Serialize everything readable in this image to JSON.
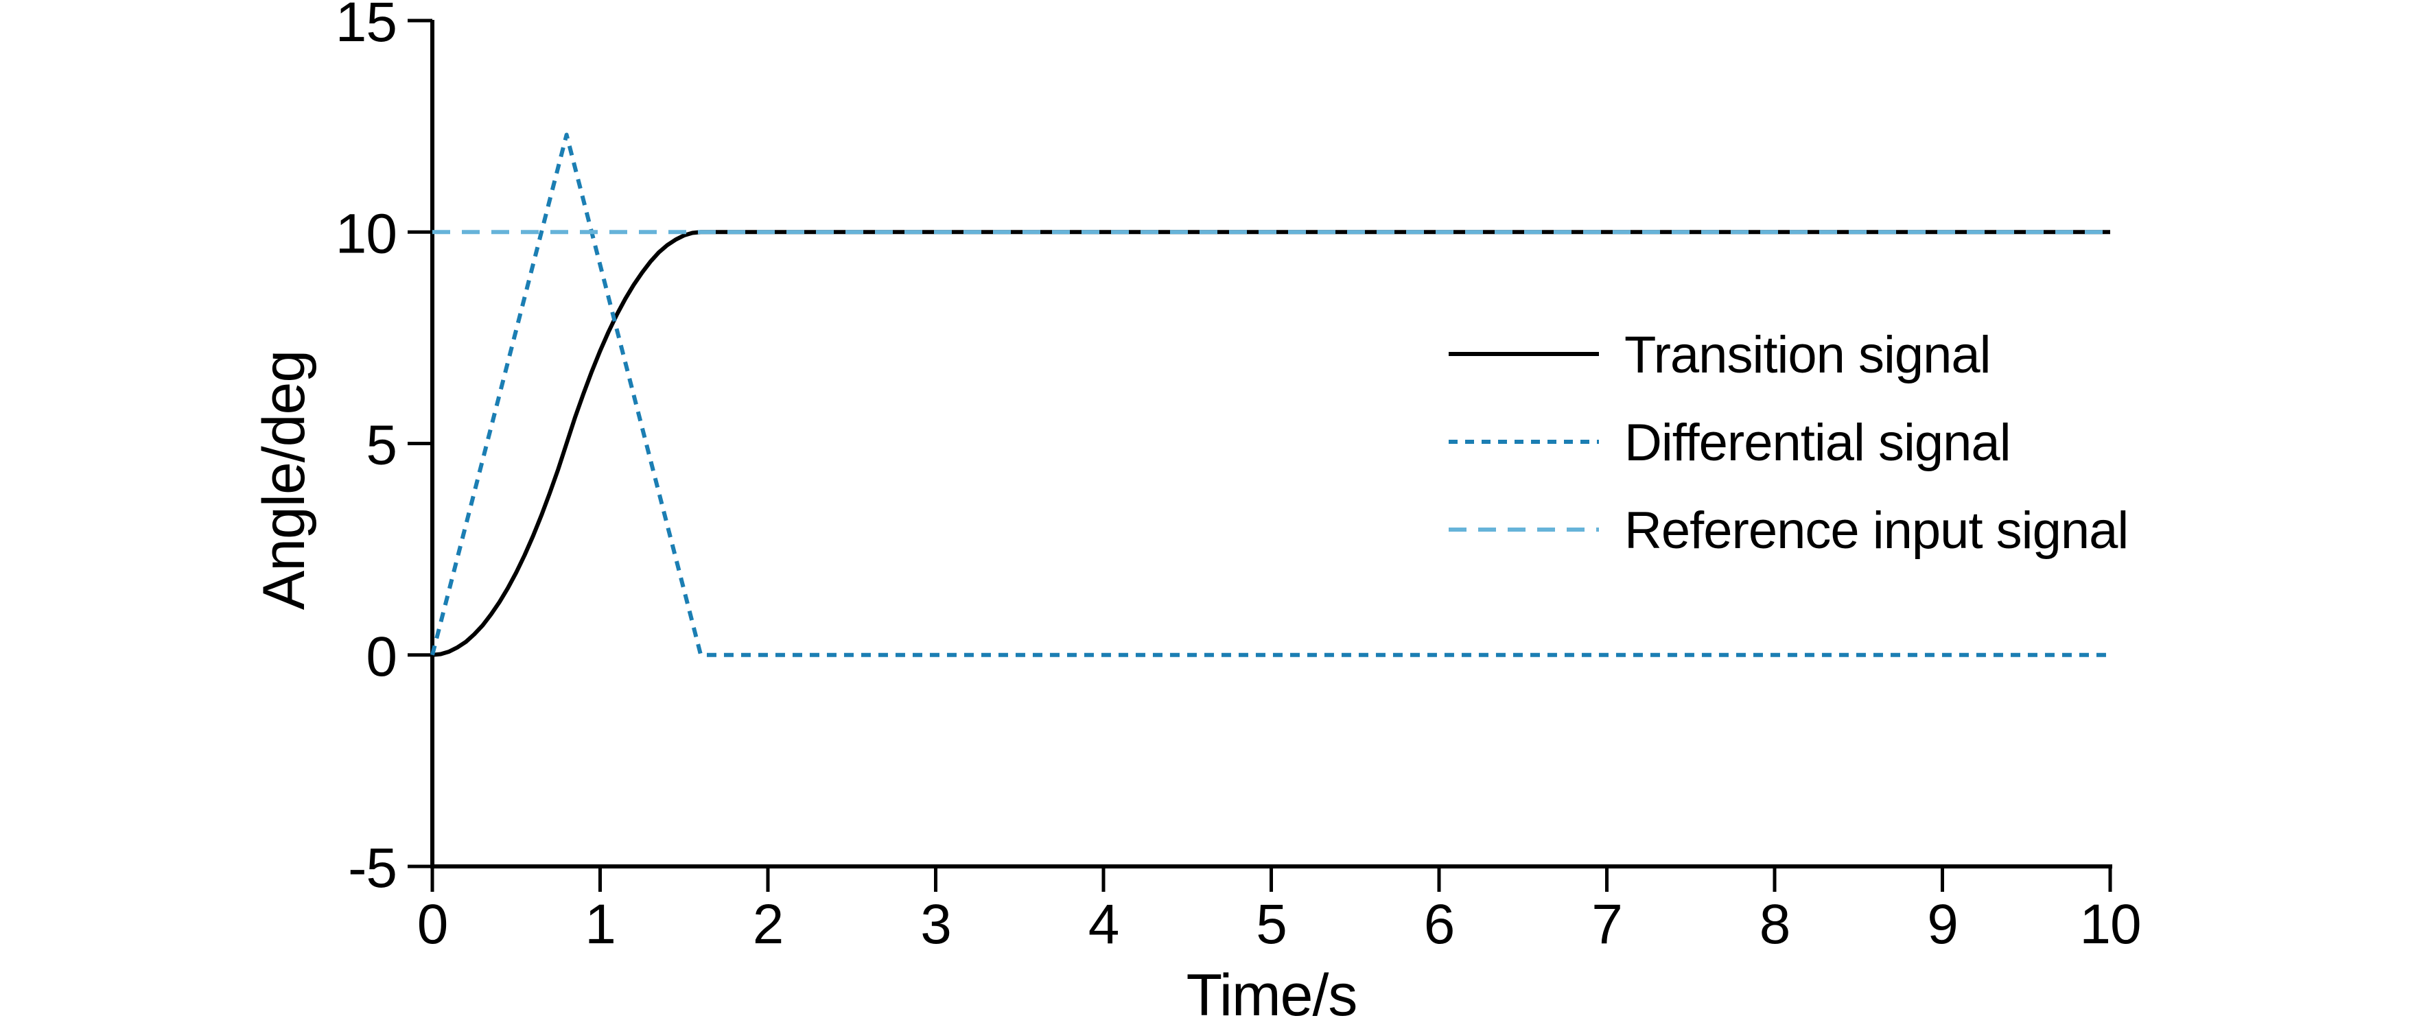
{
  "figure": {
    "xlabel": "Time/s",
    "ylabel": "Angle/deg"
  },
  "legend": {
    "position": "middle-right",
    "items": [
      {
        "label": "Transition signal",
        "color": "#000000",
        "dash": "solid"
      },
      {
        "label": "Differential signal",
        "color": "#1b7eb3",
        "dash": "short"
      },
      {
        "label": "Reference input signal",
        "color": "#66b3d9",
        "dash": "long"
      }
    ]
  },
  "chart_data": {
    "type": "line",
    "title": "",
    "xlabel": "Time/s",
    "ylabel": "Angle/deg",
    "xlim": [
      0,
      10
    ],
    "ylim": [
      -5,
      15
    ],
    "xticks": [
      0,
      1,
      2,
      3,
      4,
      5,
      6,
      7,
      8,
      9,
      10
    ],
    "yticks": [
      -5,
      0,
      5,
      10,
      15
    ],
    "grid": false,
    "legend_position": "middle-right",
    "series": [
      {
        "name": "Transition signal",
        "color": "#000000",
        "dash": "solid",
        "description": "Smooth S-curve rising from 0 to 10 between t=0 and t=1.6 s, then constant at 10",
        "points": [
          [
            0,
            0
          ],
          [
            0.05,
            0.02
          ],
          [
            0.1,
            0.08
          ],
          [
            0.15,
            0.18
          ],
          [
            0.2,
            0.31
          ],
          [
            0.25,
            0.49
          ],
          [
            0.3,
            0.7
          ],
          [
            0.35,
            0.96
          ],
          [
            0.4,
            1.25
          ],
          [
            0.45,
            1.58
          ],
          [
            0.5,
            1.95
          ],
          [
            0.55,
            2.36
          ],
          [
            0.6,
            2.81
          ],
          [
            0.65,
            3.3
          ],
          [
            0.7,
            3.83
          ],
          [
            0.75,
            4.39
          ],
          [
            0.8,
            5.0
          ],
          [
            0.85,
            5.61
          ],
          [
            0.9,
            6.17
          ],
          [
            0.95,
            6.7
          ],
          [
            1.0,
            7.19
          ],
          [
            1.05,
            7.64
          ],
          [
            1.1,
            8.05
          ],
          [
            1.15,
            8.42
          ],
          [
            1.2,
            8.75
          ],
          [
            1.25,
            9.04
          ],
          [
            1.3,
            9.3
          ],
          [
            1.35,
            9.52
          ],
          [
            1.4,
            9.69
          ],
          [
            1.45,
            9.82
          ],
          [
            1.5,
            9.92
          ],
          [
            1.55,
            9.98
          ],
          [
            1.6,
            10
          ],
          [
            2,
            10
          ],
          [
            10,
            10
          ]
        ]
      },
      {
        "name": "Differential signal",
        "color": "#1b7eb3",
        "dash": "short",
        "description": "Triangular pulse: rises linearly from 0 at t=0 to peak 12.3 at t=0.8 s, falls to 0 at t=1.6 s, then constant 0",
        "points": [
          [
            0,
            0
          ],
          [
            0.8,
            12.3
          ],
          [
            1.6,
            0
          ],
          [
            10,
            0
          ]
        ]
      },
      {
        "name": "Reference input signal",
        "color": "#66b3d9",
        "dash": "long",
        "description": "Constant reference at 10 deg over the full time range",
        "points": [
          [
            0,
            10
          ],
          [
            10,
            10
          ]
        ]
      }
    ]
  }
}
